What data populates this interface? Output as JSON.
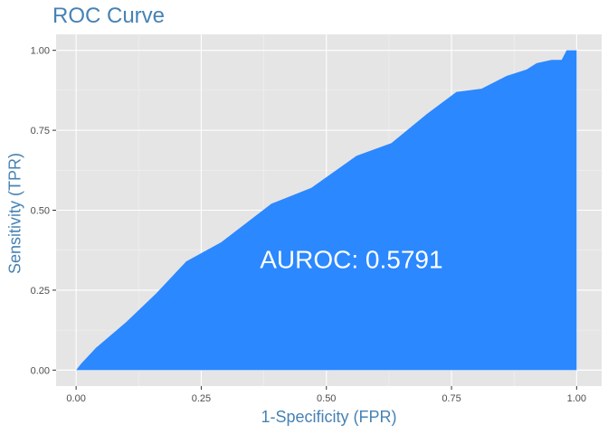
{
  "chart_data": {
    "type": "area",
    "title": "ROC Curve",
    "xlabel": "1-Specificity (FPR)",
    "ylabel": "Sensitivity (TPR)",
    "xlim": [
      -0.04,
      1.05
    ],
    "ylim": [
      -0.05,
      1.05
    ],
    "x_ticks": [
      "0.00",
      "0.25",
      "0.50",
      "0.75",
      "1.00"
    ],
    "y_ticks": [
      "0.00",
      "0.25",
      "0.50",
      "0.75",
      "1.00"
    ],
    "x_tick_values": [
      0,
      0.25,
      0.5,
      0.75,
      1.0
    ],
    "y_tick_values": [
      0,
      0.25,
      0.5,
      0.75,
      1.0
    ],
    "grid": true,
    "fill_color": "#2b88ff",
    "panel_color": "#e5e5e5",
    "title_color": "#4682b4",
    "annotation": {
      "text": "AUROC: 0.5791",
      "x": 0.55,
      "y": 0.34
    },
    "series": [
      {
        "x": [
          0.0,
          0.01,
          0.04,
          0.1,
          0.16,
          0.22,
          0.29,
          0.39,
          0.47,
          0.56,
          0.63,
          0.7,
          0.76,
          0.81,
          0.86,
          0.9,
          0.92,
          0.95,
          0.97,
          0.98,
          0.99,
          1.0,
          1.0
        ],
        "y": [
          0.0,
          0.02,
          0.07,
          0.15,
          0.24,
          0.34,
          0.4,
          0.52,
          0.57,
          0.67,
          0.71,
          0.8,
          0.87,
          0.88,
          0.92,
          0.94,
          0.96,
          0.97,
          0.97,
          1.0,
          1.0,
          1.0,
          0.0
        ]
      }
    ]
  }
}
